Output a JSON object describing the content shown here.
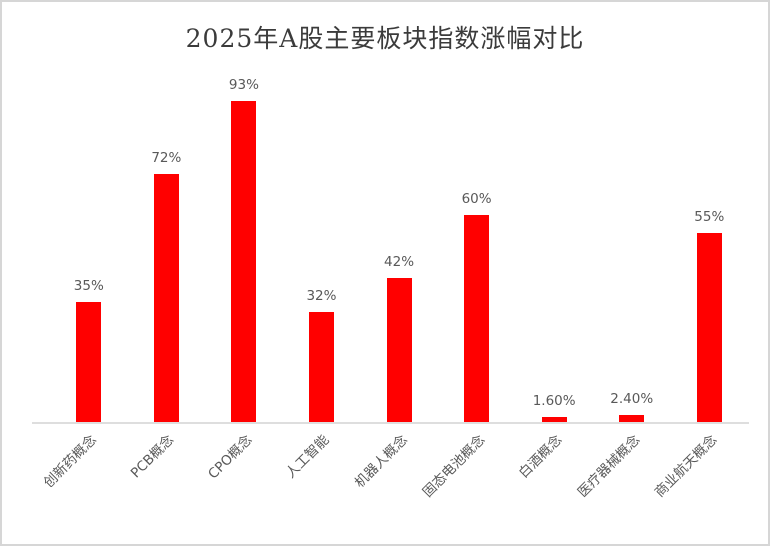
{
  "title": "2025年A股主要板块指数涨幅对比",
  "colors": {
    "bar": "#ff0000",
    "title_text": "#3b3b3b",
    "label_text": "#595959",
    "axis_line": "#dedede",
    "frame_border": "#d6d6d6",
    "background": "#ffffff"
  },
  "chart_data": {
    "type": "bar",
    "title": "2025年A股主要板块指数涨幅对比",
    "categories": [
      "创新药概念",
      "PCB概念",
      "CPO概念",
      "人工智能",
      "机器人概念",
      "固态电池概念",
      "白酒概念",
      "医疗器械概念",
      "商业航天概念"
    ],
    "values": [
      35,
      72,
      93,
      32,
      42,
      60,
      1.6,
      2.4,
      55
    ],
    "value_labels": [
      "35%",
      "72%",
      "93%",
      "32%",
      "42%",
      "60%",
      "1.60%",
      "2.40%",
      "55%"
    ],
    "xlabel": "",
    "ylabel": "",
    "ylim": [
      0,
      100
    ],
    "grid": false,
    "legend": false,
    "bar_color": "#ff0000",
    "category_label_rotation_deg": 45
  }
}
